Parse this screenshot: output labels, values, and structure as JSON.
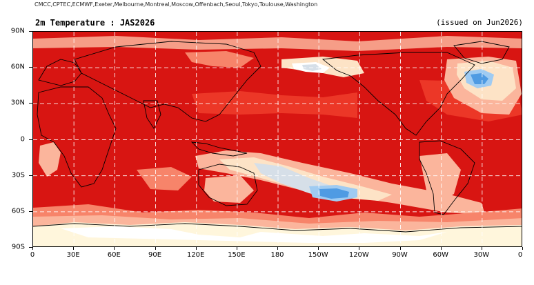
{
  "header": {
    "sources": "CMCC,CPTEC,ECMWF,Exeter,Melbourne,Montreal,Moscow,Offenbach,Seoul,Tokyo,Toulouse,Washington",
    "title": "2m Temperature : JAS2026",
    "issued": "(issued on Jun2026)"
  },
  "map": {
    "variable": "2m Temperature",
    "season": "JAS2026",
    "background_color": "#d81512",
    "palette": {
      "dark_red": "#d81512",
      "red": "#ee3b2a",
      "orange": "#f7846a",
      "salmon": "#fbb59c",
      "peach": "#fde3c6",
      "cream": "#fff6dc",
      "white": "#ffffff",
      "light_grey_blue": "#d6dfe8",
      "light_blue": "#9fcbf2",
      "blue": "#4f9be3"
    },
    "y_axis": {
      "ticks": [
        {
          "lat": 90,
          "label": "90N"
        },
        {
          "lat": 60,
          "label": "60N"
        },
        {
          "lat": 30,
          "label": "30N"
        },
        {
          "lat": 0,
          "label": "0"
        },
        {
          "lat": -30,
          "label": "30S"
        },
        {
          "lat": -60,
          "label": "60S"
        },
        {
          "lat": -90,
          "label": "90S"
        }
      ]
    },
    "x_axis": {
      "ticks": [
        {
          "lon": 0,
          "label": "0"
        },
        {
          "lon": 30,
          "label": "30E"
        },
        {
          "lon": 60,
          "label": "60E"
        },
        {
          "lon": 90,
          "label": "90E"
        },
        {
          "lon": 120,
          "label": "120E"
        },
        {
          "lon": 150,
          "label": "150E"
        },
        {
          "lon": 180,
          "label": "180"
        },
        {
          "lon": 210,
          "label": "150W"
        },
        {
          "lon": 240,
          "label": "120W"
        },
        {
          "lon": 270,
          "label": "90W"
        },
        {
          "lon": 300,
          "label": "60W"
        },
        {
          "lon": 330,
          "label": "30W"
        },
        {
          "lon": 360,
          "label": "0"
        }
      ]
    }
  }
}
